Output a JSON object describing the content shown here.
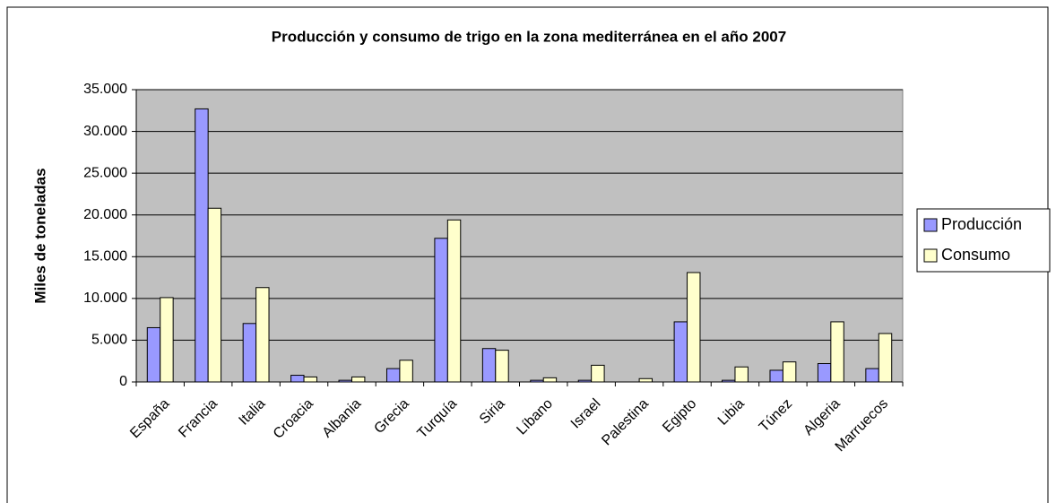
{
  "chart_data": {
    "type": "bar",
    "title": "Producción y consumo de trigo en la zona mediterránea en el año 2007",
    "y_label": "Miles de toneladas",
    "categories": [
      "España",
      "Francia",
      "Italia",
      "Croacia",
      "Albania",
      "Grecia",
      "Turquía",
      "Siria",
      "Líbano",
      "Israel",
      "Palestina",
      "Egipto",
      "Libia",
      "Túnez",
      "Algeria",
      "Marruecos"
    ],
    "series": [
      {
        "name": "Producción",
        "color": "#9999ff",
        "values": [
          6500,
          32700,
          7000,
          800,
          200,
          1600,
          17200,
          4000,
          200,
          200,
          0,
          7200,
          200,
          1400,
          2200,
          1600
        ]
      },
      {
        "name": "Consumo",
        "color": "#ffffcc",
        "values": [
          10100,
          20800,
          11300,
          600,
          600,
          2600,
          19400,
          3800,
          500,
          2000,
          400,
          13100,
          1800,
          2400,
          7200,
          5800
        ]
      }
    ],
    "ylim": [
      0,
      35000
    ],
    "yticks": [
      0,
      {
        "value": 5000,
        "label": "5.000"
      },
      {
        "value": 10000,
        "label": "10.000"
      },
      {
        "value": 15000,
        "label": "15.000"
      },
      {
        "value": 20000,
        "label": "20.000"
      },
      {
        "value": 25000,
        "label": "25.000"
      },
      {
        "value": 30000,
        "label": "30.000"
      },
      {
        "value": 35000,
        "label": "35.000"
      }
    ],
    "grid": true,
    "plot_background": "#c0c0c0",
    "legend": "right"
  }
}
